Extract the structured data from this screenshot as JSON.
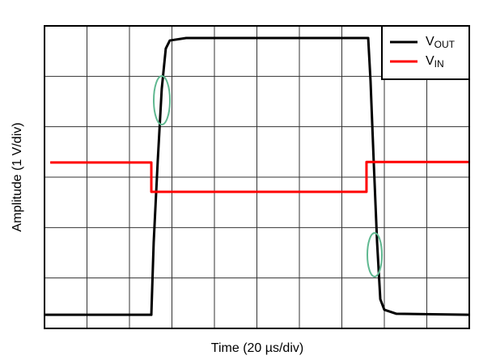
{
  "chart_data": {
    "type": "line",
    "xlabel": "Time (20 µs/div)",
    "ylabel": "Amplitude (1 V/div)",
    "xlim": [
      0,
      200
    ],
    "xticks": [
      0,
      20,
      40,
      60,
      80,
      100,
      120,
      140,
      160,
      180,
      200
    ],
    "ylim": [
      0,
      6
    ],
    "yticks": [
      0,
      1,
      2,
      3,
      4,
      5,
      6
    ],
    "grid": true,
    "legend": "upper right",
    "series": [
      {
        "name": "VOUT",
        "color": "#000000",
        "x": [
          0,
          50.3,
          51.4,
          53.3,
          55.2,
          57.1,
          59.0,
          66.7,
          152.4,
          153.5,
          155.0,
          156.6,
          158.1,
          160.0,
          165.7,
          200
        ],
        "values": [
          0.27,
          0.27,
          1.7,
          3.31,
          4.75,
          5.55,
          5.71,
          5.76,
          5.76,
          4.91,
          3.31,
          1.7,
          0.58,
          0.37,
          0.29,
          0.27
        ]
      },
      {
        "name": "VIN",
        "color": "#ff0000",
        "x": [
          2.7,
          50.3,
          50.3,
          151.6,
          151.6,
          200
        ],
        "values": [
          3.29,
          3.29,
          2.71,
          2.71,
          3.3,
          3.3
        ]
      }
    ]
  }
}
